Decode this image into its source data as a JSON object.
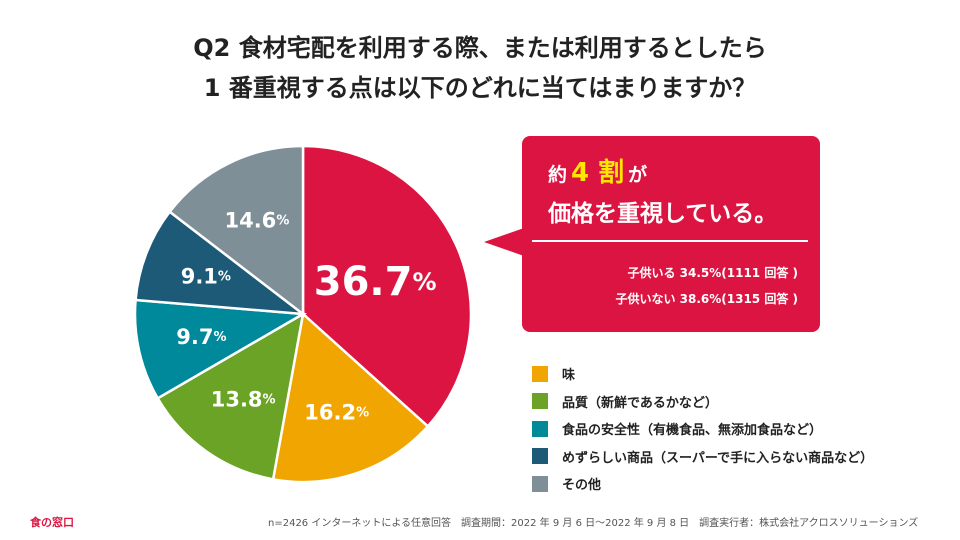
{
  "title": {
    "line1": "Q2 食材宅配を利用する際、または利用するとしたら",
    "line2": "1 番重視する点は以下のどれに当てはまりますか？"
  },
  "chart_data": {
    "type": "pie",
    "title": "Q2 食材宅配を利用する際、または利用するとしたら 1 番重視する点は以下のどれに当てはまりますか？",
    "unit": "%",
    "slices": [
      {
        "label": "価格",
        "value": 36.7,
        "display": "36.7",
        "color": "#dc1441"
      },
      {
        "label": "味",
        "value": 16.2,
        "display": "16.2",
        "color": "#f0a500"
      },
      {
        "label": "品質（新鮮であるかなど）",
        "value": 13.8,
        "display": "13.8",
        "color": "#6aa325"
      },
      {
        "label": "食品の安全性（有機食品、無添加食品など）",
        "value": 9.7,
        "display": "9.7",
        "color": "#00889b"
      },
      {
        "label": "めずらしい商品（スーパーで手に入らない商品など）",
        "value": 9.1,
        "display": "9.1",
        "color": "#1c5a78"
      },
      {
        "label": "その他",
        "value": 14.6,
        "display": "14.6",
        "color": "#7f8f97"
      }
    ]
  },
  "legend": [
    {
      "label": "味",
      "color": "#f0a500"
    },
    {
      "label": "品質（新鮮であるかなど）",
      "color": "#6aa325"
    },
    {
      "label": "食品の安全性（有機食品、無添加食品など）",
      "color": "#00889b"
    },
    {
      "label": "めずらしい商品（スーパーで手に入らない商品など）",
      "color": "#1c5a78"
    },
    {
      "label": "その他",
      "color": "#7f8f97"
    }
  ],
  "callout": {
    "prefix": "約",
    "highlight": "4 割",
    "suffix": "が",
    "line2": "価格を重視している。",
    "sub1": "子供いる 34.5%(1111 回答 )",
    "sub2": "子供いない 38.6%(1315 回答 )"
  },
  "brand": "食の窓口",
  "footnote": "n=2426 インターネットによる任意回答　調査期間：2022 年 9 月 6 日～2022 年 9 月 8 日　調査実行者：株式会社アクロスソリューションズ"
}
